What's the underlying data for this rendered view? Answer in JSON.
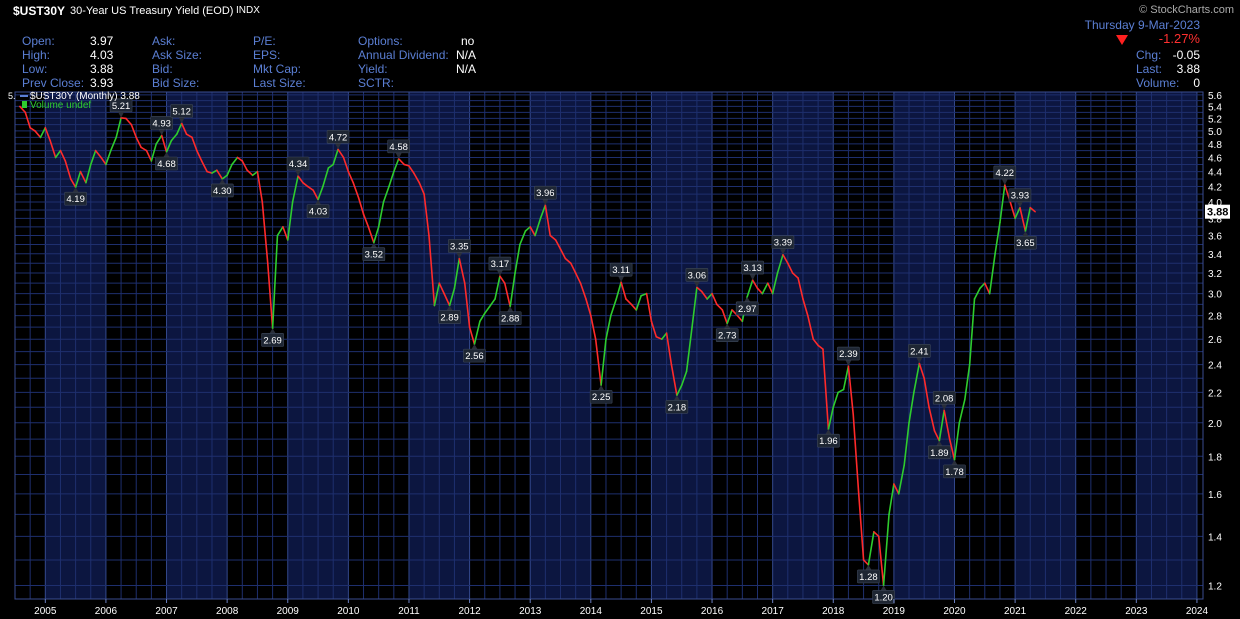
{
  "header": {
    "symbol": "$UST30Y",
    "description": "30-Year US Treasury Yield (EOD)",
    "exchange": "INDX",
    "credit": "© StockCharts.com",
    "date": "Thursday  9-Mar-2023",
    "change_pct": "-1.27%",
    "stats_col1": [
      {
        "label": "Open:",
        "value": "3.97"
      },
      {
        "label": "High:",
        "value": "4.03"
      },
      {
        "label": "Low:",
        "value": "3.88"
      },
      {
        "label": "Prev Close:",
        "value": "3.93"
      }
    ],
    "stats_col2": [
      "Ask:",
      "Ask Size:",
      "Bid:",
      "Bid Size:"
    ],
    "stats_col3": [
      "P/E:",
      "EPS:",
      "Mkt Cap:",
      "Last Size:"
    ],
    "stats_col4": [
      {
        "label": "Options:",
        "value": "no"
      },
      {
        "label": "Annual Dividend:",
        "value": "N/A"
      },
      {
        "label": "Yield:",
        "value": "N/A"
      },
      {
        "label": "SCTR:",
        "value": ""
      }
    ],
    "stats_right": [
      {
        "label": "Chg:",
        "value": "-0.05"
      },
      {
        "label": "Last:",
        "value": "3.88"
      },
      {
        "label": "Volume:",
        "value": "0"
      }
    ]
  },
  "legend": {
    "series": "$UST30Y (Monthly) 3.88",
    "volume": "Volume undef"
  },
  "colors": {
    "up": "#2ecc2e",
    "down": "#ff2a2a",
    "grid": "#1e2f6e",
    "band": "#0c1640",
    "axis_text": "#ffffff"
  },
  "chart_data": {
    "type": "line",
    "frequency": "monthly",
    "scale": "log",
    "ylim": [
      1.15,
      5.65
    ],
    "xlim": [
      2004.5,
      2024.1
    ],
    "y_ticks": [
      1.2,
      1.4,
      1.6,
      1.8,
      2.0,
      2.2,
      2.4,
      2.6,
      2.8,
      3.0,
      3.2,
      3.4,
      3.6,
      3.8,
      4.0,
      4.2,
      4.4,
      4.6,
      4.8,
      5.0,
      5.2,
      5.4,
      5.6
    ],
    "y_tick_labels": [
      "1.2",
      "1.4",
      "1.6",
      "1.8",
      "2.0",
      "2.2",
      "2.4",
      "2.6",
      "2.8",
      "3.0",
      "3.2",
      "3.4",
      "3.6",
      "3.8",
      "4.0",
      "4.2",
      "4.4",
      "4.6",
      "4.8",
      "5.0",
      "5.2",
      "5.4",
      "5.6"
    ],
    "x_ticks": [
      "2005",
      "2006",
      "2007",
      "2008",
      "2009",
      "2010",
      "2011",
      "2012",
      "2013",
      "2014",
      "2015",
      "2016",
      "2017",
      "2018",
      "2019",
      "2020",
      "2021",
      "2022",
      "2023",
      "2024"
    ],
    "last_value": "3.88",
    "first_label": "5.",
    "series": [
      {
        "name": "$UST30Y",
        "points": [
          [
            2004.58,
            5.4
          ],
          [
            2004.67,
            5.3
          ],
          [
            2004.75,
            5.05
          ],
          [
            2004.83,
            5.0
          ],
          [
            2004.92,
            4.9
          ],
          [
            2005.0,
            5.05
          ],
          [
            2005.08,
            4.85
          ],
          [
            2005.17,
            4.6
          ],
          [
            2005.25,
            4.7
          ],
          [
            2005.33,
            4.55
          ],
          [
            2005.42,
            4.3
          ],
          [
            2005.5,
            4.19
          ],
          [
            2005.58,
            4.4
          ],
          [
            2005.67,
            4.25
          ],
          [
            2005.75,
            4.5
          ],
          [
            2005.83,
            4.7
          ],
          [
            2005.92,
            4.6
          ],
          [
            2006.0,
            4.5
          ],
          [
            2006.08,
            4.7
          ],
          [
            2006.17,
            4.9
          ],
          [
            2006.25,
            5.21
          ],
          [
            2006.33,
            5.2
          ],
          [
            2006.42,
            5.1
          ],
          [
            2006.5,
            4.9
          ],
          [
            2006.58,
            4.75
          ],
          [
            2006.67,
            4.7
          ],
          [
            2006.75,
            4.55
          ],
          [
            2006.83,
            4.8
          ],
          [
            2006.92,
            4.93
          ],
          [
            2007.0,
            4.68
          ],
          [
            2007.08,
            4.85
          ],
          [
            2007.17,
            4.95
          ],
          [
            2007.25,
            5.12
          ],
          [
            2007.33,
            4.95
          ],
          [
            2007.42,
            4.9
          ],
          [
            2007.5,
            4.7
          ],
          [
            2007.58,
            4.55
          ],
          [
            2007.67,
            4.4
          ],
          [
            2007.75,
            4.38
          ],
          [
            2007.83,
            4.42
          ],
          [
            2007.92,
            4.3
          ],
          [
            2008.0,
            4.35
          ],
          [
            2008.08,
            4.5
          ],
          [
            2008.17,
            4.6
          ],
          [
            2008.25,
            4.55
          ],
          [
            2008.33,
            4.42
          ],
          [
            2008.42,
            4.35
          ],
          [
            2008.5,
            4.4
          ],
          [
            2008.58,
            4.0
          ],
          [
            2008.67,
            3.3
          ],
          [
            2008.75,
            2.69
          ],
          [
            2008.83,
            3.6
          ],
          [
            2008.92,
            3.7
          ],
          [
            2009.0,
            3.55
          ],
          [
            2009.08,
            4.0
          ],
          [
            2009.17,
            4.34
          ],
          [
            2009.25,
            4.25
          ],
          [
            2009.33,
            4.2
          ],
          [
            2009.42,
            4.15
          ],
          [
            2009.5,
            4.03
          ],
          [
            2009.58,
            4.2
          ],
          [
            2009.67,
            4.45
          ],
          [
            2009.75,
            4.5
          ],
          [
            2009.83,
            4.72
          ],
          [
            2009.92,
            4.6
          ],
          [
            2010.0,
            4.4
          ],
          [
            2010.08,
            4.25
          ],
          [
            2010.17,
            4.05
          ],
          [
            2010.25,
            3.85
          ],
          [
            2010.33,
            3.7
          ],
          [
            2010.42,
            3.52
          ],
          [
            2010.5,
            3.7
          ],
          [
            2010.58,
            4.0
          ],
          [
            2010.67,
            4.2
          ],
          [
            2010.75,
            4.4
          ],
          [
            2010.83,
            4.58
          ],
          [
            2010.92,
            4.5
          ],
          [
            2011.0,
            4.48
          ],
          [
            2011.08,
            4.38
          ],
          [
            2011.17,
            4.25
          ],
          [
            2011.25,
            4.1
          ],
          [
            2011.33,
            3.6
          ],
          [
            2011.42,
            2.89
          ],
          [
            2011.5,
            3.1
          ],
          [
            2011.58,
            3.0
          ],
          [
            2011.67,
            2.89
          ],
          [
            2011.75,
            3.05
          ],
          [
            2011.83,
            3.35
          ],
          [
            2011.92,
            3.1
          ],
          [
            2012.0,
            2.7
          ],
          [
            2012.08,
            2.56
          ],
          [
            2012.17,
            2.75
          ],
          [
            2012.25,
            2.82
          ],
          [
            2012.33,
            2.88
          ],
          [
            2012.42,
            2.95
          ],
          [
            2012.5,
            3.17
          ],
          [
            2012.58,
            3.1
          ],
          [
            2012.67,
            2.88
          ],
          [
            2012.75,
            3.2
          ],
          [
            2012.83,
            3.5
          ],
          [
            2012.92,
            3.65
          ],
          [
            2013.0,
            3.7
          ],
          [
            2013.08,
            3.6
          ],
          [
            2013.17,
            3.8
          ],
          [
            2013.25,
            3.96
          ],
          [
            2013.33,
            3.6
          ],
          [
            2013.42,
            3.55
          ],
          [
            2013.5,
            3.45
          ],
          [
            2013.58,
            3.35
          ],
          [
            2013.67,
            3.3
          ],
          [
            2013.75,
            3.2
          ],
          [
            2013.83,
            3.1
          ],
          [
            2013.92,
            2.95
          ],
          [
            2014.0,
            2.8
          ],
          [
            2014.08,
            2.6
          ],
          [
            2014.17,
            2.25
          ],
          [
            2014.25,
            2.6
          ],
          [
            2014.33,
            2.8
          ],
          [
            2014.42,
            2.95
          ],
          [
            2014.5,
            3.11
          ],
          [
            2014.58,
            2.95
          ],
          [
            2014.67,
            2.9
          ],
          [
            2014.75,
            2.85
          ],
          [
            2014.83,
            2.98
          ],
          [
            2014.92,
            3.0
          ],
          [
            2015.0,
            2.75
          ],
          [
            2015.08,
            2.62
          ],
          [
            2015.17,
            2.6
          ],
          [
            2015.25,
            2.65
          ],
          [
            2015.33,
            2.4
          ],
          [
            2015.42,
            2.18
          ],
          [
            2015.5,
            2.25
          ],
          [
            2015.58,
            2.35
          ],
          [
            2015.67,
            2.7
          ],
          [
            2015.75,
            3.06
          ],
          [
            2015.83,
            3.02
          ],
          [
            2015.92,
            2.95
          ],
          [
            2016.0,
            3.0
          ],
          [
            2016.08,
            2.9
          ],
          [
            2016.17,
            2.85
          ],
          [
            2016.25,
            2.73
          ],
          [
            2016.33,
            2.85
          ],
          [
            2016.42,
            2.8
          ],
          [
            2016.5,
            2.75
          ],
          [
            2016.58,
            2.97
          ],
          [
            2016.67,
            3.13
          ],
          [
            2016.75,
            3.05
          ],
          [
            2016.83,
            3.0
          ],
          [
            2016.92,
            3.1
          ],
          [
            2017.0,
            3.0
          ],
          [
            2017.08,
            3.2
          ],
          [
            2017.17,
            3.39
          ],
          [
            2017.25,
            3.3
          ],
          [
            2017.33,
            3.2
          ],
          [
            2017.42,
            3.15
          ],
          [
            2017.5,
            2.95
          ],
          [
            2017.58,
            2.8
          ],
          [
            2017.67,
            2.6
          ],
          [
            2017.75,
            2.55
          ],
          [
            2017.83,
            2.52
          ],
          [
            2017.92,
            1.96
          ],
          [
            2018.0,
            2.1
          ],
          [
            2018.08,
            2.2
          ],
          [
            2018.17,
            2.22
          ],
          [
            2018.25,
            2.39
          ],
          [
            2018.33,
            2.05
          ],
          [
            2018.42,
            1.6
          ],
          [
            2018.5,
            1.3
          ],
          [
            2018.58,
            1.28
          ],
          [
            2018.67,
            1.42
          ],
          [
            2018.75,
            1.4
          ],
          [
            2018.83,
            1.2
          ],
          [
            2018.92,
            1.5
          ],
          [
            2019.0,
            1.65
          ],
          [
            2019.08,
            1.6
          ],
          [
            2019.17,
            1.75
          ],
          [
            2019.25,
            2.0
          ],
          [
            2019.33,
            2.2
          ],
          [
            2019.42,
            2.41
          ],
          [
            2019.5,
            2.3
          ],
          [
            2019.58,
            2.1
          ],
          [
            2019.67,
            1.95
          ],
          [
            2019.75,
            1.89
          ],
          [
            2019.83,
            2.08
          ],
          [
            2019.92,
            1.9
          ],
          [
            2020.0,
            1.78
          ],
          [
            2020.08,
            2.0
          ],
          [
            2020.17,
            2.15
          ],
          [
            2020.25,
            2.4
          ],
          [
            2020.33,
            2.95
          ],
          [
            2020.42,
            3.05
          ],
          [
            2020.5,
            3.1
          ],
          [
            2020.58,
            3.0
          ],
          [
            2020.67,
            3.4
          ],
          [
            2020.75,
            3.75
          ],
          [
            2020.83,
            4.22
          ],
          [
            2020.92,
            4.0
          ],
          [
            2021.0,
            3.8
          ],
          [
            2021.08,
            3.93
          ],
          [
            2021.17,
            3.65
          ],
          [
            2021.25,
            3.93
          ],
          [
            2021.33,
            3.88
          ]
        ]
      }
    ],
    "labels": [
      {
        "x": 2005.5,
        "y": 4.19,
        "text": "4.19",
        "pos": "below"
      },
      {
        "x": 2006.25,
        "y": 5.21,
        "text": "5.21",
        "pos": "above"
      },
      {
        "x": 2006.92,
        "y": 4.93,
        "text": "4.93",
        "pos": "above"
      },
      {
        "x": 2007.0,
        "y": 4.68,
        "text": "4.68",
        "pos": "below"
      },
      {
        "x": 2007.25,
        "y": 5.12,
        "text": "5.12",
        "pos": "above"
      },
      {
        "x": 2007.92,
        "y": 4.3,
        "text": "4.30",
        "pos": "below"
      },
      {
        "x": 2008.75,
        "y": 2.69,
        "text": "2.69",
        "pos": "below"
      },
      {
        "x": 2009.17,
        "y": 4.34,
        "text": "4.34",
        "pos": "above"
      },
      {
        "x": 2009.5,
        "y": 4.03,
        "text": "4.03",
        "pos": "below"
      },
      {
        "x": 2009.83,
        "y": 4.72,
        "text": "4.72",
        "pos": "above"
      },
      {
        "x": 2010.42,
        "y": 3.52,
        "text": "3.52",
        "pos": "below"
      },
      {
        "x": 2010.83,
        "y": 4.58,
        "text": "4.58",
        "pos": "above"
      },
      {
        "x": 2011.67,
        "y": 2.89,
        "text": "2.89",
        "pos": "below"
      },
      {
        "x": 2011.83,
        "y": 3.35,
        "text": "3.35",
        "pos": "above"
      },
      {
        "x": 2012.08,
        "y": 2.56,
        "text": "2.56",
        "pos": "below"
      },
      {
        "x": 2012.5,
        "y": 3.17,
        "text": "3.17",
        "pos": "above"
      },
      {
        "x": 2012.67,
        "y": 2.88,
        "text": "2.88",
        "pos": "below"
      },
      {
        "x": 2013.25,
        "y": 3.96,
        "text": "3.96",
        "pos": "above"
      },
      {
        "x": 2014.17,
        "y": 2.25,
        "text": "2.25",
        "pos": "below"
      },
      {
        "x": 2014.5,
        "y": 3.11,
        "text": "3.11",
        "pos": "above"
      },
      {
        "x": 2015.42,
        "y": 2.18,
        "text": "2.18",
        "pos": "below"
      },
      {
        "x": 2015.75,
        "y": 3.06,
        "text": "3.06",
        "pos": "above"
      },
      {
        "x": 2016.25,
        "y": 2.73,
        "text": "2.73",
        "pos": "below"
      },
      {
        "x": 2016.58,
        "y": 2.97,
        "text": "2.97",
        "pos": "below"
      },
      {
        "x": 2016.67,
        "y": 3.13,
        "text": "3.13",
        "pos": "above"
      },
      {
        "x": 2017.17,
        "y": 3.39,
        "text": "3.39",
        "pos": "above"
      },
      {
        "x": 2017.92,
        "y": 1.96,
        "text": "1.96",
        "pos": "below"
      },
      {
        "x": 2018.25,
        "y": 2.39,
        "text": "2.39",
        "pos": "above"
      },
      {
        "x": 2018.58,
        "y": 1.28,
        "text": "1.28",
        "pos": "below"
      },
      {
        "x": 2018.83,
        "y": 1.2,
        "text": "1.20",
        "pos": "below"
      },
      {
        "x": 2019.42,
        "y": 2.41,
        "text": "2.41",
        "pos": "above"
      },
      {
        "x": 2019.75,
        "y": 1.89,
        "text": "1.89",
        "pos": "below"
      },
      {
        "x": 2019.83,
        "y": 2.08,
        "text": "2.08",
        "pos": "above"
      },
      {
        "x": 2020.0,
        "y": 1.78,
        "text": "1.78",
        "pos": "below"
      },
      {
        "x": 2020.83,
        "y": 4.22,
        "text": "4.22",
        "pos": "above"
      },
      {
        "x": 2021.08,
        "y": 3.93,
        "text": "3.93",
        "pos": "above"
      },
      {
        "x": 2021.17,
        "y": 3.65,
        "text": "3.65",
        "pos": "below"
      }
    ]
  }
}
